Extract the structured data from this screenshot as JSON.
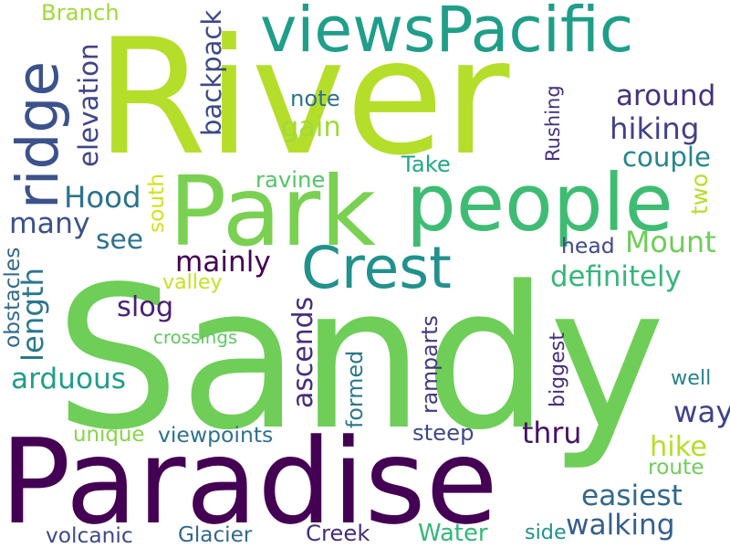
{
  "cloud": {
    "words": [
      {
        "text": "River",
        "color": "#b5de2b"
      },
      {
        "text": "Sandy",
        "color": "#6ece58"
      },
      {
        "text": "Paradise",
        "color": "#440154"
      },
      {
        "text": "Park",
        "color": "#7ad151"
      },
      {
        "text": "people",
        "color": "#3fbc73"
      },
      {
        "text": "viewsPacific",
        "color": "#1f9e89"
      },
      {
        "text": "Crest",
        "color": "#21918c"
      },
      {
        "text": "ridge",
        "color": "#3b528b"
      },
      {
        "text": "around",
        "color": "#46327e"
      },
      {
        "text": "hiking",
        "color": "#424086"
      },
      {
        "text": "couple",
        "color": "#25848e"
      },
      {
        "text": "Hood",
        "color": "#2c728e"
      },
      {
        "text": "many",
        "color": "#3b528b"
      },
      {
        "text": "see",
        "color": "#2c728e"
      },
      {
        "text": "Mount",
        "color": "#6ece58"
      },
      {
        "text": "mainly",
        "color": "#440154"
      },
      {
        "text": "definitely",
        "color": "#35b779"
      },
      {
        "text": "gain",
        "color": "#a0da39"
      },
      {
        "text": "slog",
        "color": "#482173"
      },
      {
        "text": "arduous",
        "color": "#1f9e89"
      },
      {
        "text": "way",
        "color": "#404387"
      },
      {
        "text": "thru",
        "color": "#471164"
      },
      {
        "text": "hike",
        "color": "#b5de2b"
      },
      {
        "text": "easiest",
        "color": "#31688e"
      },
      {
        "text": "walking",
        "color": "#355f8d"
      },
      {
        "text": "route",
        "color": "#6ece58"
      },
      {
        "text": "well",
        "color": "#26828e"
      },
      {
        "text": "unique",
        "color": "#86d549"
      },
      {
        "text": "viewpoints",
        "color": "#2c728e"
      },
      {
        "text": "steep",
        "color": "#3e4989"
      },
      {
        "text": "volcanic",
        "color": "#3e4989"
      },
      {
        "text": "Glacier",
        "color": "#31688e"
      },
      {
        "text": "Creek",
        "color": "#472d7b"
      },
      {
        "text": "Water",
        "color": "#35b779"
      },
      {
        "text": "side",
        "color": "#21918c"
      },
      {
        "text": "Branch",
        "color": "#a0da39"
      },
      {
        "text": "note",
        "color": "#2c728e"
      },
      {
        "text": "ravine",
        "color": "#54c568"
      },
      {
        "text": "Take",
        "color": "#22a884"
      },
      {
        "text": "head",
        "color": "#3e4989"
      },
      {
        "text": "valley",
        "color": "#c8e020"
      },
      {
        "text": "crossings",
        "color": "#5ec962"
      },
      {
        "text": "backpack",
        "color": "#3e4989"
      },
      {
        "text": "elevation",
        "color": "#414487"
      },
      {
        "text": "length",
        "color": "#2a788e"
      },
      {
        "text": "obstacles",
        "color": "#31688e"
      },
      {
        "text": "south",
        "color": "#d2e21b"
      },
      {
        "text": "ascends",
        "color": "#472d7b"
      },
      {
        "text": "formed",
        "color": "#2a788e"
      },
      {
        "text": "ramparts",
        "color": "#453781"
      },
      {
        "text": "biggest",
        "color": "#472d7b"
      },
      {
        "text": "Rushing",
        "color": "#46327e"
      },
      {
        "text": "two",
        "color": "#b5de2b"
      }
    ]
  }
}
